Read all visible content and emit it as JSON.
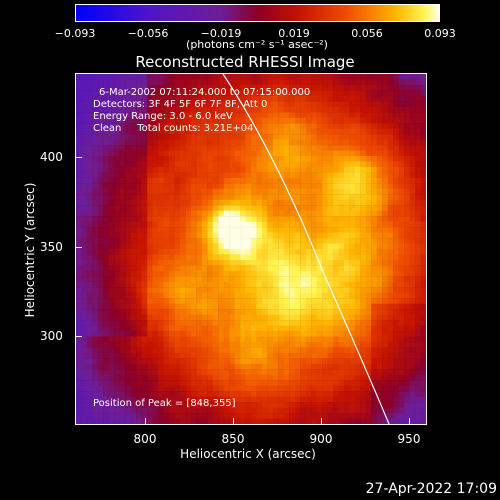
{
  "colorbar": {
    "tick_labels": [
      "−0.093",
      "−0.056",
      "−0.019",
      "0.019",
      "0.056",
      "0.093"
    ],
    "units_label": "(photons cm⁻² s⁻¹ asec⁻²)",
    "range": [
      -0.093,
      0.093
    ]
  },
  "plot": {
    "title": "Reconstructed RHESSI Image",
    "info": {
      "time_range": "6-Mar-2002 07:11:24.000 to 07:15:00.000",
      "detectors": "Detectors: 3F 4F 5F 6F 7F 8F, Att 0",
      "energy": "Energy Range: 3.0 - 6.0 keV",
      "method": "Clean     Total counts: 3.21E+04"
    },
    "peak_label": "Position of Peak = [848,355]",
    "x_ticks": [
      "800",
      "850",
      "900",
      "950"
    ],
    "y_ticks": [
      "400",
      "350",
      "300"
    ],
    "xlabel": "Heliocentric X (arcsec)",
    "ylabel": "Heliocentric Y (arcsec)",
    "xlim": [
      762,
      962
    ],
    "ylim": [
      250,
      450
    ]
  },
  "footer": {
    "timestamp": "27-Apr-2022 17:09"
  },
  "chart_data": {
    "type": "heatmap",
    "title": "Reconstructed RHESSI Image",
    "xlabel": "Heliocentric X (arcsec)",
    "ylabel": "Heliocentric Y (arcsec)",
    "xlim": [
      762,
      962
    ],
    "ylim": [
      250,
      450
    ],
    "value_range": [
      -0.093,
      0.093
    ],
    "peak": [
      848,
      355
    ]
  }
}
